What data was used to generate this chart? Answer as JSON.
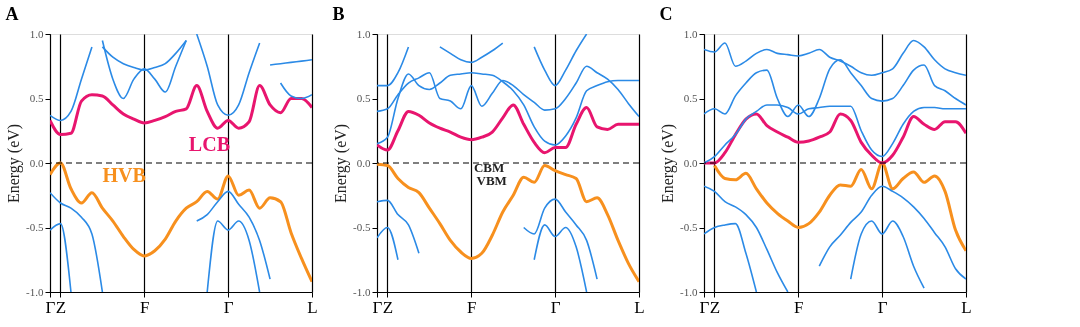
{
  "chart_data": [
    {
      "type": "line",
      "title": "A",
      "ylabel": "Energy (eV)",
      "ylim": [
        -1.0,
        1.0
      ],
      "categories": [
        "Γ",
        "Z",
        null,
        null,
        null,
        null,
        null,
        null,
        null,
        "F",
        null,
        null,
        null,
        null,
        null,
        null,
        null,
        "Γ",
        null,
        null,
        null,
        null,
        null,
        null,
        null,
        "L"
      ],
      "yticks": [
        {
          "value": -1,
          "label": "-1.0"
        },
        {
          "value": -0.5,
          "label": "-0.5"
        },
        {
          "value": 0,
          "label": "0.0"
        },
        {
          "value": 0.5,
          "label": "0.5"
        },
        {
          "value": 1,
          "label": "1.0"
        }
      ],
      "grid": "x",
      "ref_lines": [
        {
          "axis": "y",
          "value": 0,
          "label": null,
          "color": "#000000",
          "line_style": "dashed"
        }
      ],
      "annotations": [
        "LCB",
        "HVB"
      ],
      "series": [
        {
          "color": "#f7901e",
          "values": [
            -0.09,
            0.0,
            -0.2,
            -0.31,
            -0.23,
            -0.35,
            -0.45,
            -0.57,
            -0.67,
            -0.72,
            -0.68,
            -0.59,
            -0.45,
            -0.35,
            -0.3,
            -0.22,
            -0.28,
            -0.1,
            -0.25,
            -0.21,
            -0.35,
            -0.27,
            -0.3,
            -0.54,
            -0.74,
            -0.92
          ]
        },
        {
          "color": "#e8156e",
          "values": [
            0.33,
            0.22,
            0.23,
            0.48,
            0.53,
            0.52,
            0.45,
            0.38,
            0.34,
            0.31,
            0.33,
            0.36,
            0.4,
            0.42,
            0.6,
            0.4,
            0.27,
            0.33,
            0.27,
            0.32,
            0.6,
            0.45,
            0.39,
            0.5,
            0.5,
            0.43
          ]
        },
        {
          "color": "#2b8ae6",
          "values": [
            -0.23,
            -0.31,
            -0.35,
            -0.42,
            -0.55,
            -1.0,
            null,
            null,
            null,
            null,
            null,
            null,
            null,
            null,
            -0.45,
            -0.4,
            -0.3,
            -0.22,
            -0.32,
            -0.42,
            -0.6,
            -0.9,
            null,
            null,
            null,
            null
          ]
        },
        {
          "color": "#2b8ae6",
          "values": [
            -0.52,
            -0.47,
            -1.0,
            null,
            null,
            null,
            null,
            null,
            null,
            null,
            null,
            null,
            null,
            null,
            null,
            -1.0,
            -0.45,
            -0.52,
            -0.45,
            -0.6,
            -1.0,
            null,
            null,
            null,
            null,
            null
          ]
        },
        {
          "color": "#2b8ae6",
          "values": [
            0.37,
            0.33,
            0.4,
            0.65,
            0.9,
            null,
            null,
            null,
            null,
            null,
            null,
            null,
            null,
            null,
            1.0,
            0.75,
            0.45,
            0.37,
            0.45,
            0.7,
            0.93,
            null,
            null,
            null,
            null,
            null
          ]
        },
        {
          "color": "#2b8ae6",
          "values": [
            null,
            null,
            null,
            null,
            null,
            0.95,
            0.65,
            0.5,
            0.65,
            0.73,
            0.65,
            0.55,
            0.75,
            0.95,
            null,
            null,
            null,
            null,
            null,
            null,
            null,
            null,
            null,
            null,
            null,
            null
          ]
        },
        {
          "color": "#2b8ae6",
          "values": [
            null,
            null,
            null,
            null,
            null,
            0.9,
            0.82,
            0.77,
            0.74,
            0.72,
            0.74,
            0.77,
            0.85,
            0.95,
            null,
            null,
            null,
            null,
            null,
            null,
            null,
            null,
            null,
            null,
            null,
            null
          ]
        },
        {
          "color": "#2b8ae6",
          "values": [
            null,
            null,
            null,
            null,
            null,
            null,
            null,
            null,
            null,
            null,
            null,
            null,
            null,
            null,
            null,
            null,
            null,
            null,
            null,
            null,
            null,
            0.76,
            0.77,
            0.78,
            0.79,
            0.8
          ]
        },
        {
          "color": "#2b8ae6",
          "values": [
            null,
            null,
            null,
            null,
            null,
            null,
            null,
            null,
            null,
            null,
            null,
            null,
            null,
            null,
            null,
            null,
            null,
            null,
            null,
            null,
            null,
            null,
            0.62,
            0.52,
            0.5,
            0.53
          ]
        }
      ]
    },
    {
      "type": "line",
      "title": "B",
      "ylabel": "Energy (eV)",
      "ylim": [
        -1.0,
        1.0
      ],
      "categories": [
        "Γ",
        "Z",
        null,
        null,
        null,
        null,
        null,
        null,
        null,
        "F",
        null,
        null,
        null,
        null,
        null,
        null,
        null,
        "Γ",
        null,
        null,
        null,
        null,
        null,
        null,
        null,
        "L"
      ],
      "yticks": [
        {
          "value": -1,
          "label": "-1.0"
        },
        {
          "value": -0.5,
          "label": "-0.5"
        },
        {
          "value": 0,
          "label": "0.0"
        },
        {
          "value": 0.5,
          "label": "0.5"
        },
        {
          "value": 1,
          "label": "1.0"
        }
      ],
      "grid": "x",
      "ref_lines": [
        {
          "axis": "y",
          "value": 0,
          "label": null,
          "color": "#000000",
          "line_style": "dashed"
        }
      ],
      "annotations": [
        "CBM",
        "VBM"
      ],
      "series": [
        {
          "color": "#f7901e",
          "values": [
            -0.01,
            -0.02,
            -0.12,
            -0.19,
            -0.23,
            -0.35,
            -0.47,
            -0.6,
            -0.69,
            -0.74,
            -0.7,
            -0.56,
            -0.38,
            -0.25,
            -0.11,
            -0.15,
            -0.02,
            -0.06,
            -0.09,
            -0.12,
            -0.3,
            -0.27,
            -0.4,
            -0.6,
            -0.78,
            -0.92
          ]
        },
        {
          "color": "#e8156e",
          "values": [
            0.14,
            0.1,
            0.25,
            0.4,
            0.37,
            0.31,
            0.27,
            0.24,
            0.2,
            0.18,
            0.2,
            0.24,
            0.35,
            0.45,
            0.3,
            0.16,
            0.08,
            0.12,
            0.12,
            0.3,
            0.43,
            0.28,
            0.26,
            0.3,
            0.3,
            0.3
          ]
        },
        {
          "color": "#2b8ae6",
          "values": [
            -0.3,
            -0.29,
            -0.4,
            -0.48,
            -0.7,
            null,
            null,
            null,
            null,
            null,
            null,
            null,
            null,
            null,
            -0.5,
            -0.55,
            -0.35,
            -0.28,
            -0.38,
            -0.48,
            -0.6,
            -0.9,
            null,
            null,
            null,
            null
          ]
        },
        {
          "color": "#2b8ae6",
          "values": [
            -0.58,
            -0.5,
            -0.75,
            null,
            null,
            null,
            null,
            null,
            null,
            null,
            null,
            null,
            null,
            null,
            null,
            -0.75,
            -0.48,
            -0.57,
            -0.5,
            -0.65,
            -1.0,
            null,
            null,
            null,
            null,
            null
          ]
        },
        {
          "color": "#2b8ae6",
          "values": [
            0.15,
            0.2,
            0.5,
            0.69,
            0.6,
            0.57,
            0.62,
            0.68,
            0.69,
            0.7,
            0.69,
            0.68,
            0.63,
            0.56,
            0.45,
            0.28,
            0.17,
            0.14,
            0.21,
            0.35,
            0.56,
            0.6,
            0.63,
            0.64,
            0.64,
            0.64
          ]
        },
        {
          "color": "#2b8ae6",
          "values": [
            0.4,
            0.42,
            0.53,
            0.62,
            0.66,
            0.7,
            0.5,
            0.48,
            0.42,
            0.6,
            0.44,
            0.54,
            0.64,
            0.6,
            0.53,
            0.47,
            0.41,
            0.42,
            0.5,
            0.62,
            0.75,
            0.7,
            0.65,
            0.57,
            0.46,
            0.36
          ]
        },
        {
          "color": "#2b8ae6",
          "values": [
            0.6,
            0.6,
            0.7,
            0.9,
            null,
            null,
            0.9,
            0.85,
            0.8,
            0.78,
            0.82,
            0.87,
            0.93,
            null,
            null,
            0.9,
            0.72,
            0.6,
            0.72,
            0.87,
            1.0,
            null,
            null,
            null,
            null,
            null
          ]
        }
      ]
    },
    {
      "type": "line",
      "title": "C",
      "ylabel": "Energy (eV)",
      "ylim": [
        -1.0,
        1.0
      ],
      "categories": [
        "Γ",
        "Z",
        null,
        null,
        null,
        null,
        null,
        null,
        null,
        "F",
        null,
        null,
        null,
        null,
        null,
        null,
        null,
        "Γ",
        null,
        null,
        null,
        null,
        null,
        null,
        null,
        "L"
      ],
      "yticks": [
        {
          "value": -1,
          "label": "-1.0"
        },
        {
          "value": -0.5,
          "label": "-0.5"
        },
        {
          "value": 0,
          "label": "0.0"
        },
        {
          "value": 0.5,
          "label": "0.5"
        },
        {
          "value": 1,
          "label": "1.0"
        }
      ],
      "grid": "x",
      "ref_lines": [
        {
          "axis": "y",
          "value": 0,
          "label": null,
          "color": "#000000",
          "line_style": "dashed"
        }
      ],
      "series": [
        {
          "color": "#f7901e",
          "values": [
            null,
            -0.02,
            -0.12,
            -0.13,
            -0.08,
            -0.2,
            -0.31,
            -0.39,
            -0.45,
            -0.5,
            -0.47,
            -0.38,
            -0.25,
            -0.17,
            -0.18,
            -0.05,
            -0.2,
            0.0,
            -0.2,
            -0.12,
            -0.07,
            -0.15,
            -0.1,
            -0.22,
            -0.52,
            -0.68
          ]
        },
        {
          "color": "#e8156e",
          "values": [
            0.0,
            0.0,
            0.08,
            0.22,
            0.34,
            0.38,
            0.29,
            0.24,
            0.2,
            0.16,
            0.17,
            0.2,
            0.24,
            0.38,
            0.33,
            0.16,
            0.06,
            0.0,
            0.06,
            0.2,
            0.36,
            0.3,
            0.26,
            0.32,
            0.32,
            0.23
          ]
        },
        {
          "color": "#2b8ae6",
          "values": [
            -0.18,
            -0.22,
            -0.3,
            -0.34,
            -0.4,
            -0.5,
            -0.67,
            -0.85,
            -1.0,
            null,
            null,
            -0.8,
            -0.65,
            -0.56,
            -0.46,
            -0.38,
            -0.25,
            -0.18,
            -0.22,
            -0.27,
            -0.34,
            -0.43,
            -0.54,
            -0.65,
            -0.82,
            -0.9
          ]
        },
        {
          "color": "#2b8ae6",
          "values": [
            -0.55,
            -0.5,
            -0.48,
            -0.47,
            -0.7,
            -1.0,
            null,
            null,
            null,
            null,
            null,
            null,
            null,
            null,
            -0.9,
            -0.55,
            -0.45,
            -0.55,
            -0.45,
            -0.57,
            -0.8,
            -0.97,
            null,
            null,
            null,
            null
          ]
        },
        {
          "color": "#2b8ae6",
          "values": [
            0.0,
            0.05,
            0.14,
            0.22,
            0.34,
            0.4,
            0.45,
            0.45,
            0.43,
            0.38,
            0.42,
            0.43,
            0.44,
            0.44,
            0.44,
            0.25,
            0.1,
            0.05,
            0.15,
            0.3,
            0.4,
            0.43,
            0.43,
            0.42,
            0.42,
            0.42
          ]
        },
        {
          "color": "#2b8ae6",
          "values": [
            0.38,
            0.42,
            0.38,
            0.52,
            0.62,
            0.7,
            0.72,
            0.5,
            0.36,
            0.45,
            0.36,
            0.5,
            0.73,
            0.8,
            0.7,
            0.6,
            0.5,
            0.48,
            0.5,
            0.6,
            0.72,
            0.76,
            0.6,
            0.56,
            0.5,
            0.45
          ]
        },
        {
          "color": "#2b8ae6",
          "values": [
            0.88,
            0.86,
            0.93,
            0.75,
            0.79,
            0.85,
            0.88,
            0.85,
            0.84,
            0.83,
            0.85,
            0.88,
            0.82,
            0.79,
            0.75,
            0.7,
            0.68,
            0.7,
            0.73,
            0.85,
            0.95,
            0.9,
            0.8,
            0.73,
            0.7,
            0.68
          ]
        }
      ]
    }
  ]
}
